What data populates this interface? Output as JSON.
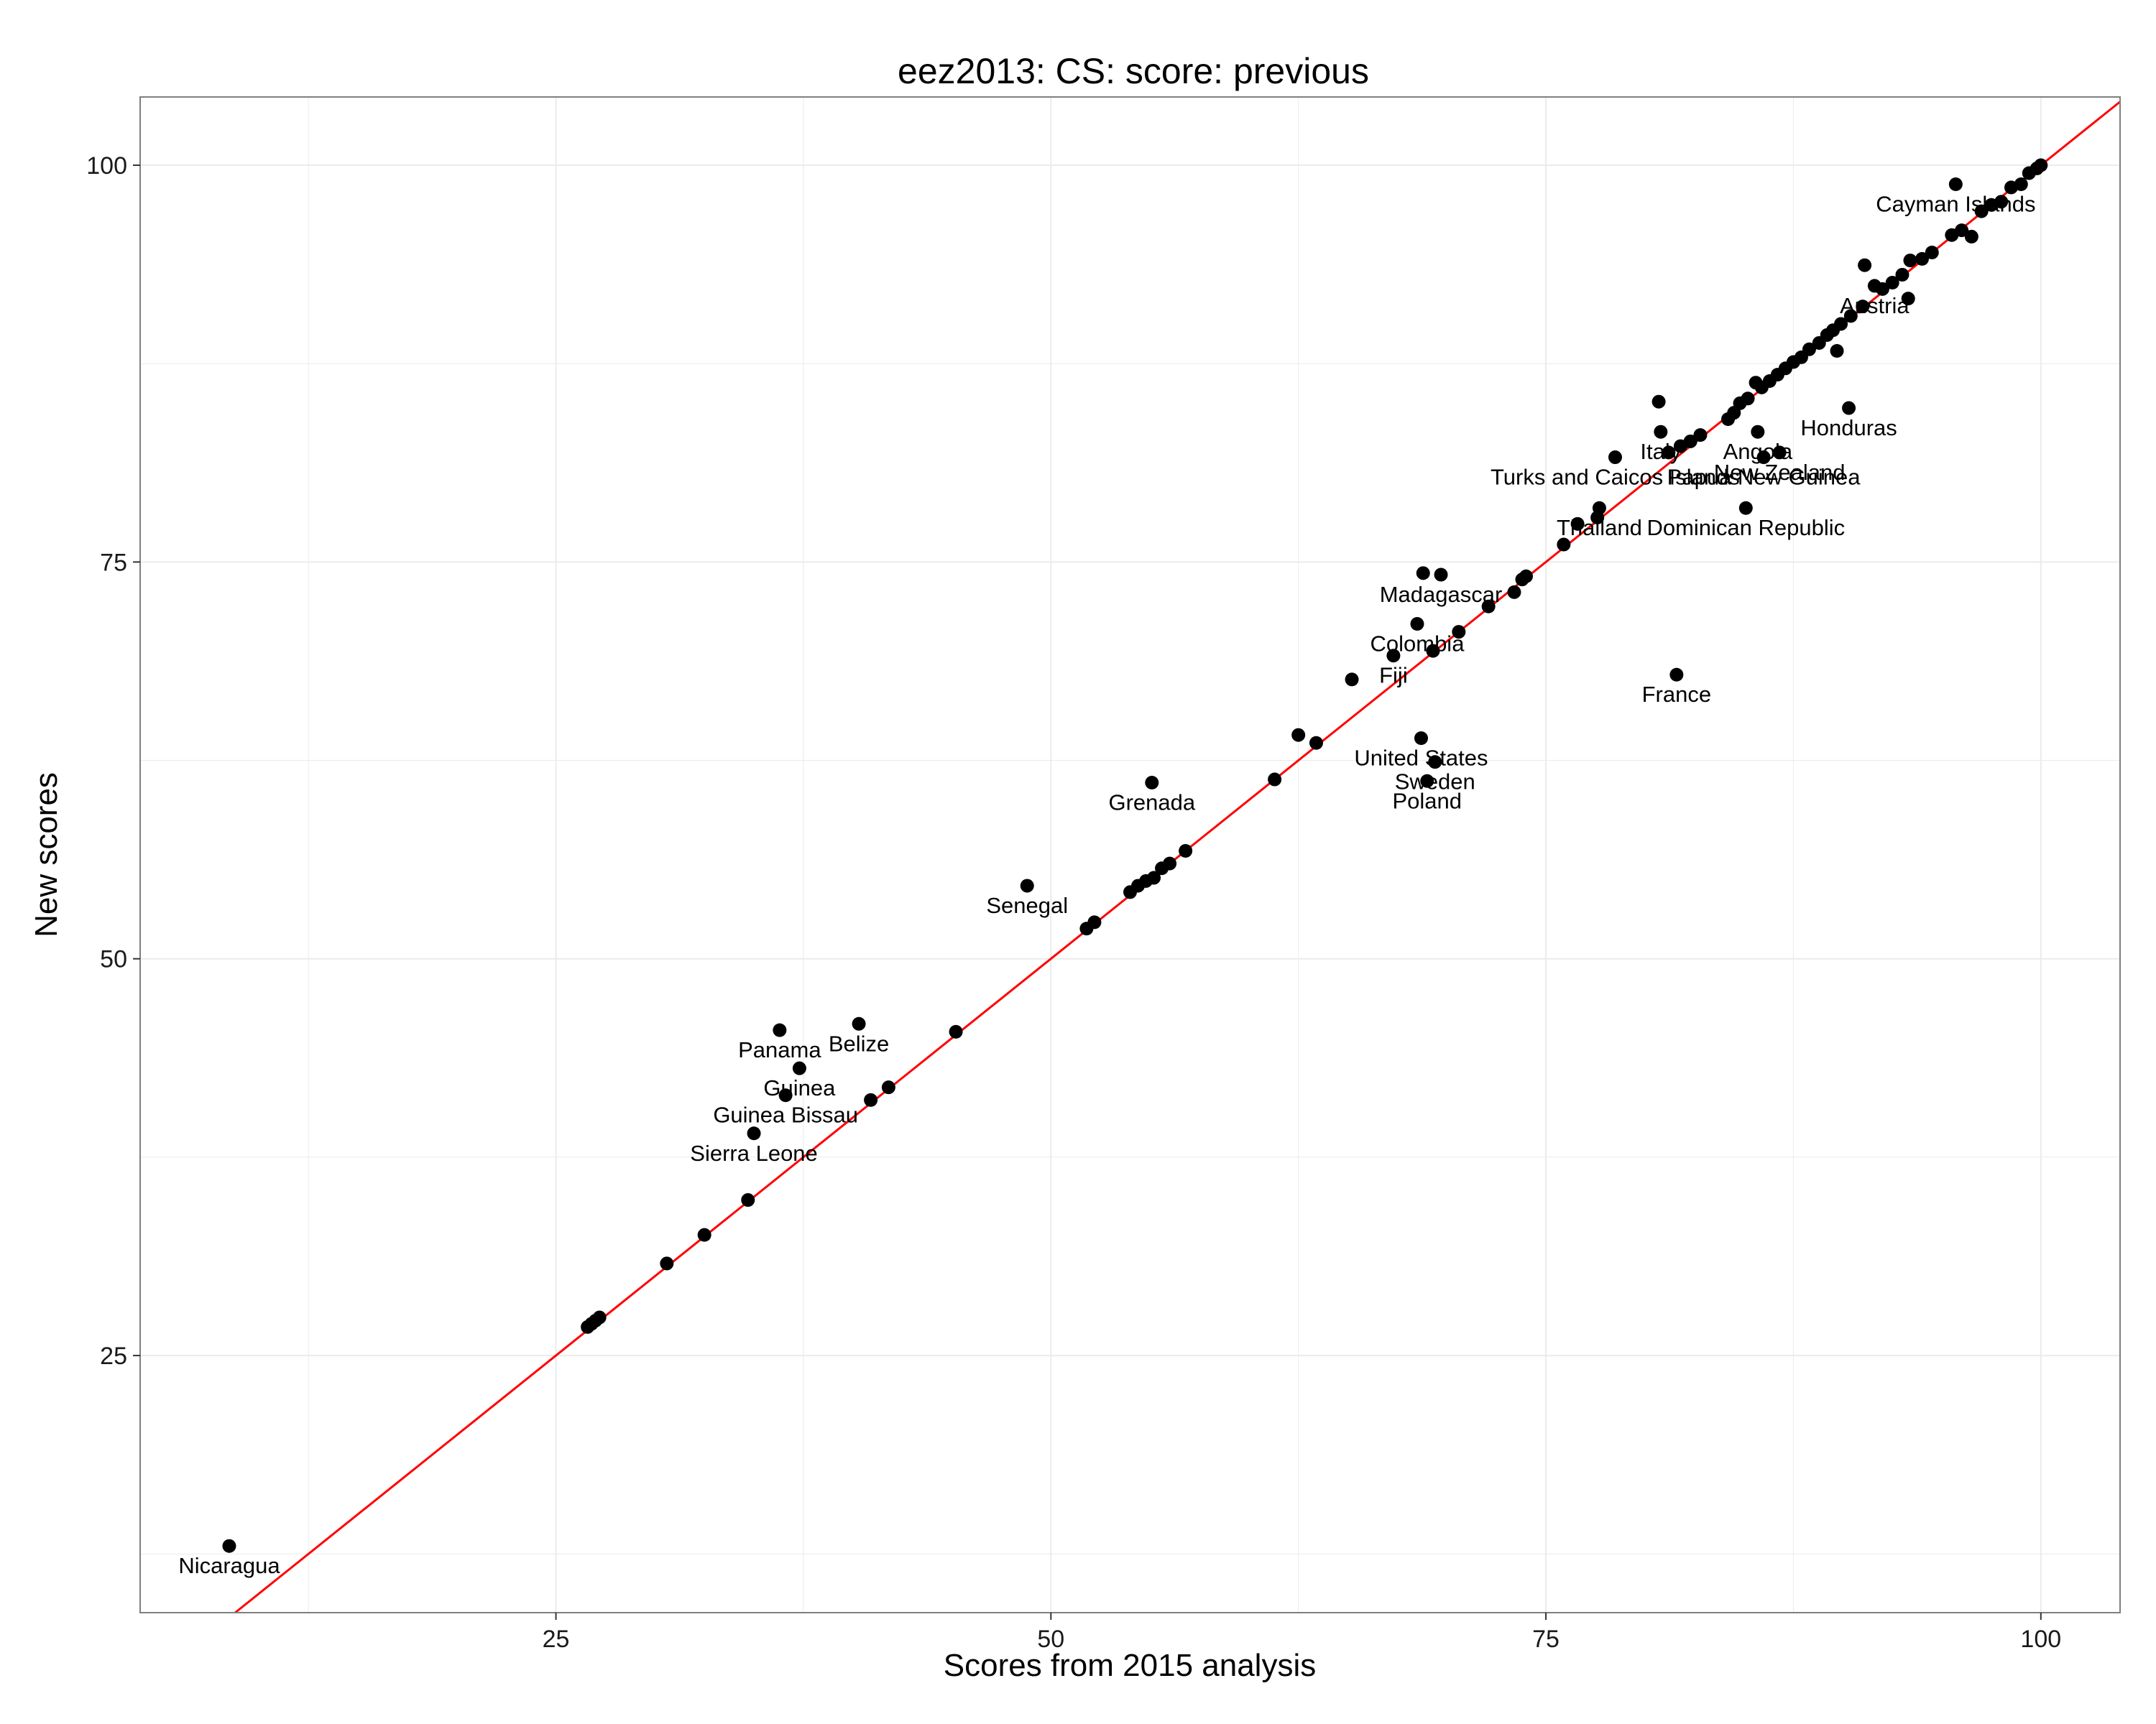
{
  "chart_data": {
    "type": "scatter",
    "title": "eez2013: CS: score: previous",
    "xlabel": "Scores from 2015 analysis",
    "ylabel": "New scores",
    "xlim": [
      4,
      104
    ],
    "ylim": [
      8.8,
      104.3
    ],
    "x_ticks": [
      25,
      50,
      75,
      100
    ],
    "y_ticks": [
      25,
      50,
      75,
      100
    ],
    "grid": true,
    "legend": "none",
    "reference_line": {
      "slope": 1,
      "intercept": 0,
      "color": "#ff0000"
    },
    "colors": {
      "background": "#ffffff",
      "grid": "#ebebeb",
      "points": "#000000",
      "line": "#ff0000",
      "border": "#7f7f7f"
    },
    "labeled_points": [
      {
        "x": 8.5,
        "y": 13.0,
        "label": "Nicaragua"
      },
      {
        "x": 36.3,
        "y": 45.5,
        "label": "Panama"
      },
      {
        "x": 40.3,
        "y": 45.9,
        "label": "Belize"
      },
      {
        "x": 37.3,
        "y": 43.1,
        "label": "Guinea"
      },
      {
        "x": 36.6,
        "y": 41.4,
        "label": "Guinea Bissau"
      },
      {
        "x": 35.0,
        "y": 39.0,
        "label": "Sierra Leone"
      },
      {
        "x": 48.8,
        "y": 54.6,
        "label": "Senegal"
      },
      {
        "x": 55.1,
        "y": 61.1,
        "label": "Grenada"
      },
      {
        "x": 68.5,
        "y": 71.1,
        "label": "Colombia"
      },
      {
        "x": 69.7,
        "y": 74.2,
        "label": "Madagascar"
      },
      {
        "x": 67.3,
        "y": 69.1,
        "label": "Fiji"
      },
      {
        "x": 68.7,
        "y": 63.9,
        "label": "United States"
      },
      {
        "x": 69.4,
        "y": 62.4,
        "label": "Sweden"
      },
      {
        "x": 69.0,
        "y": 61.2,
        "label": "Poland"
      },
      {
        "x": 81.6,
        "y": 67.9,
        "label": "France"
      },
      {
        "x": 78.5,
        "y": 81.6,
        "label": "Turks and Caicos Islands"
      },
      {
        "x": 77.7,
        "y": 78.4,
        "label": "Thailand"
      },
      {
        "x": 80.8,
        "y": 83.2,
        "label": "Italy"
      },
      {
        "x": 86.0,
        "y": 81.6,
        "label": "Papua New Guinea"
      },
      {
        "x": 86.8,
        "y": 81.9,
        "label": "New Zealand"
      },
      {
        "x": 85.7,
        "y": 83.2,
        "label": "Angola"
      },
      {
        "x": 85.1,
        "y": 78.4,
        "label": "Dominican Republic"
      },
      {
        "x": 90.3,
        "y": 84.7,
        "label": "Honduras"
      },
      {
        "x": 91.6,
        "y": 92.4,
        "label": "Austria"
      },
      {
        "x": 95.7,
        "y": 98.8,
        "label": "Cayman Islands"
      }
    ],
    "other_points": [
      [
        26.6,
        26.8
      ],
      [
        26.8,
        27.0
      ],
      [
        27.0,
        27.2
      ],
      [
        27.2,
        27.4
      ],
      [
        30.6,
        30.8
      ],
      [
        32.5,
        32.6
      ],
      [
        34.7,
        34.8
      ],
      [
        40.9,
        41.1
      ],
      [
        41.8,
        41.9
      ],
      [
        45.2,
        45.4
      ],
      [
        51.8,
        51.9
      ],
      [
        52.2,
        52.3
      ],
      [
        54.0,
        54.2
      ],
      [
        54.4,
        54.6
      ],
      [
        54.8,
        54.9
      ],
      [
        55.2,
        55.1
      ],
      [
        55.6,
        55.7
      ],
      [
        56.0,
        56.0
      ],
      [
        56.8,
        56.8
      ],
      [
        61.3,
        61.3
      ],
      [
        62.5,
        64.1
      ],
      [
        63.4,
        63.6
      ],
      [
        65.2,
        67.6
      ],
      [
        68.8,
        74.3
      ],
      [
        69.3,
        69.4
      ],
      [
        70.6,
        70.6
      ],
      [
        72.1,
        72.2
      ],
      [
        73.4,
        73.1
      ],
      [
        73.8,
        73.9
      ],
      [
        74.0,
        74.1
      ],
      [
        75.9,
        76.1
      ],
      [
        76.6,
        77.4
      ],
      [
        77.6,
        77.8
      ],
      [
        80.7,
        85.1
      ],
      [
        81.2,
        81.9
      ],
      [
        81.8,
        82.3
      ],
      [
        82.3,
        82.6
      ],
      [
        82.8,
        83.0
      ],
      [
        84.2,
        84.0
      ],
      [
        84.5,
        84.4
      ],
      [
        84.8,
        85.0
      ],
      [
        85.2,
        85.3
      ],
      [
        85.6,
        86.3
      ],
      [
        85.9,
        86.0
      ],
      [
        86.3,
        86.4
      ],
      [
        86.7,
        86.8
      ],
      [
        87.1,
        87.2
      ],
      [
        87.5,
        87.6
      ],
      [
        87.9,
        87.9
      ],
      [
        88.3,
        88.4
      ],
      [
        88.8,
        88.8
      ],
      [
        89.2,
        89.3
      ],
      [
        89.5,
        89.6
      ],
      [
        89.7,
        88.3
      ],
      [
        89.9,
        90.0
      ],
      [
        90.4,
        90.5
      ],
      [
        91.0,
        91.1
      ],
      [
        91.1,
        93.7
      ],
      [
        92.0,
        92.2
      ],
      [
        92.5,
        92.6
      ],
      [
        93.0,
        93.1
      ],
      [
        93.3,
        91.6
      ],
      [
        93.4,
        94.0
      ],
      [
        94.0,
        94.1
      ],
      [
        94.5,
        94.5
      ],
      [
        95.5,
        95.6
      ],
      [
        96.0,
        95.9
      ],
      [
        96.5,
        95.5
      ],
      [
        97.0,
        97.1
      ],
      [
        97.5,
        97.5
      ],
      [
        98.0,
        97.7
      ],
      [
        98.5,
        98.6
      ],
      [
        99.0,
        98.8
      ],
      [
        99.4,
        99.5
      ],
      [
        99.8,
        99.8
      ],
      [
        100.0,
        100.0
      ]
    ]
  }
}
